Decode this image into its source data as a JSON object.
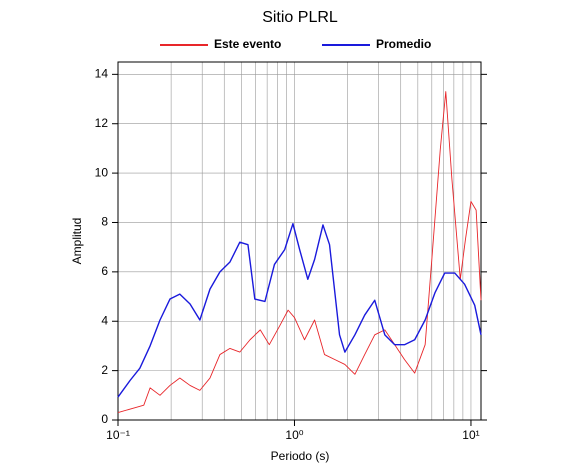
{
  "chart_data": {
    "type": "line",
    "title": "Sitio PLRL",
    "xlabel": "Periodo (s)",
    "ylabel": "Amplitud",
    "xscale": "log",
    "grid": true,
    "legend": "top",
    "xlim": [
      0.1,
      11.4
    ],
    "ylim": [
      0,
      14.5
    ],
    "xticks": [
      {
        "value": 0.1,
        "label": "10⁻¹"
      },
      {
        "value": 1,
        "label": "10⁰"
      },
      {
        "value": 10,
        "label": "10¹"
      }
    ],
    "xminorticks": [
      0.2,
      0.3,
      0.4,
      0.5,
      0.6,
      0.7,
      0.8,
      0.9,
      2,
      3,
      4,
      5,
      6,
      7,
      8,
      9
    ],
    "yticks": [
      0,
      2,
      4,
      6,
      8,
      10,
      12,
      14
    ],
    "series": [
      {
        "name": "Este evento",
        "color": "#e8262a",
        "x": [
          0.1,
          0.125,
          0.14,
          0.152,
          0.173,
          0.197,
          0.224,
          0.256,
          0.291,
          0.332,
          0.378,
          0.431,
          0.49,
          0.56,
          0.64,
          0.72,
          0.83,
          0.92,
          1.0,
          1.14,
          1.3,
          1.48,
          1.69,
          1.93,
          2.2,
          2.5,
          2.85,
          3.25,
          3.7,
          4.2,
          4.8,
          5.5,
          6.0,
          6.7,
          7.2,
          7.8,
          8.7,
          9.3,
          10.0,
          10.7,
          11.4
        ],
        "values": [
          0.3,
          0.5,
          0.6,
          1.3,
          1.0,
          1.4,
          1.7,
          1.4,
          1.2,
          1.7,
          2.65,
          2.9,
          2.75,
          3.25,
          3.65,
          3.05,
          3.85,
          4.45,
          4.15,
          3.25,
          4.05,
          2.65,
          2.45,
          2.25,
          1.85,
          2.65,
          3.45,
          3.65,
          3.05,
          2.45,
          1.9,
          3.05,
          6.5,
          10.95,
          13.3,
          9.75,
          5.7,
          7.3,
          8.85,
          8.5,
          4.85
        ]
      },
      {
        "name": "Promedio",
        "color": "#1a1adc",
        "x": [
          0.1,
          0.117,
          0.133,
          0.152,
          0.173,
          0.197,
          0.224,
          0.256,
          0.291,
          0.332,
          0.378,
          0.431,
          0.49,
          0.545,
          0.596,
          0.68,
          0.77,
          0.88,
          0.98,
          1.07,
          1.19,
          1.3,
          1.45,
          1.58,
          1.8,
          1.93,
          2.2,
          2.5,
          2.85,
          3.25,
          3.7,
          4.2,
          4.8,
          5.5,
          6.25,
          7.1,
          8.1,
          9.2,
          10.5,
          11.4
        ],
        "values": [
          0.93,
          1.6,
          2.1,
          3.0,
          4.05,
          4.9,
          5.1,
          4.7,
          4.05,
          5.3,
          6.0,
          6.4,
          7.2,
          7.1,
          4.9,
          4.8,
          6.3,
          6.9,
          7.95,
          6.9,
          5.7,
          6.5,
          7.9,
          7.1,
          3.45,
          2.75,
          3.45,
          4.25,
          4.85,
          3.45,
          3.05,
          3.05,
          3.25,
          4.05,
          5.15,
          5.95,
          5.95,
          5.5,
          4.65,
          3.45
        ]
      }
    ]
  }
}
